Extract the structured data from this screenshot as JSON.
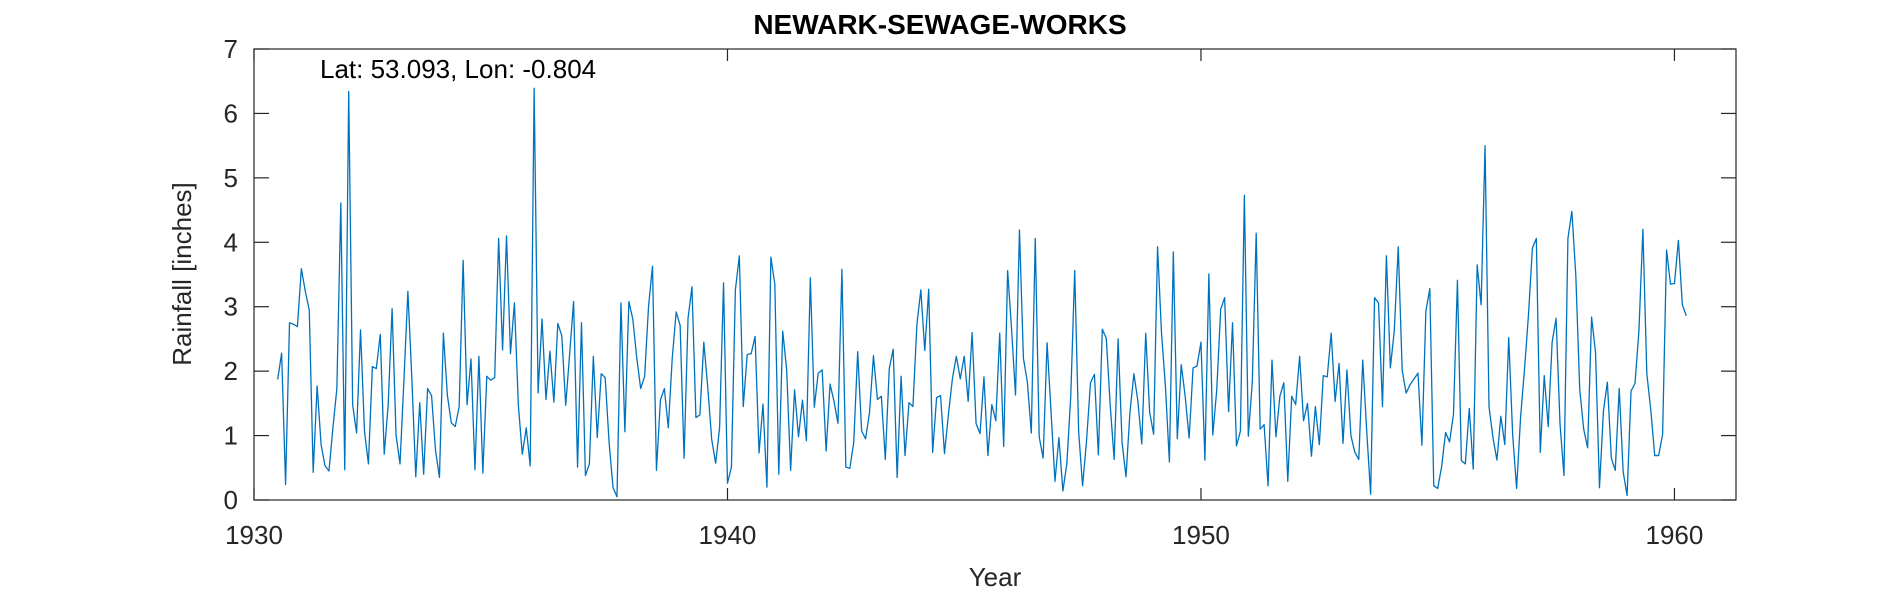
{
  "chart_data": {
    "type": "line",
    "title": "NEWARK-SEWAGE-WORKS",
    "xlabel": "Year",
    "ylabel": "Rainfall [inches]",
    "xlim": [
      1930,
      1961.3
    ],
    "ylim": [
      0,
      7
    ],
    "xticks": [
      1930,
      1940,
      1950,
      1960
    ],
    "yticks": [
      0,
      1,
      2,
      3,
      4,
      5,
      6,
      7
    ],
    "grid": false,
    "annotation": "Lat: 53.093, Lon: -0.804",
    "series": [
      {
        "color": "#0072BD",
        "start_year": 1930.5,
        "step": 0.0833333,
        "values": [
          1.87,
          2.28,
          0.24,
          2.75,
          2.73,
          2.69,
          3.59,
          3.24,
          2.95,
          0.43,
          1.77,
          0.86,
          0.53,
          0.45,
          1.12,
          1.73,
          4.61,
          0.47,
          6.34,
          1.48,
          1.04,
          2.64,
          1.07,
          0.56,
          2.07,
          2.04,
          2.57,
          0.71,
          1.47,
          2.97,
          1.01,
          0.56,
          1.86,
          3.24,
          1.89,
          0.36,
          1.51,
          0.4,
          1.73,
          1.62,
          0.77,
          0.35,
          2.59,
          1.63,
          1.2,
          1.14,
          1.45,
          3.72,
          1.48,
          2.19,
          0.47,
          2.23,
          0.42,
          1.92,
          1.86,
          1.9,
          4.06,
          2.33,
          4.1,
          2.27,
          3.06,
          1.47,
          0.71,
          1.12,
          0.53,
          6.39,
          1.66,
          2.81,
          1.56,
          2.31,
          1.52,
          2.74,
          2.55,
          1.47,
          2.27,
          3.08,
          0.51,
          2.75,
          0.38,
          0.56,
          2.23,
          0.97,
          1.96,
          1.9,
          0.89,
          0.19,
          0.05,
          3.06,
          1.06,
          3.08,
          2.81,
          2.21,
          1.73,
          1.92,
          3.01,
          3.63,
          0.46,
          1.55,
          1.73,
          1.12,
          2.2,
          2.92,
          2.71,
          0.65,
          2.82,
          3.31,
          1.28,
          1.32,
          2.45,
          1.75,
          0.94,
          0.57,
          1.12,
          3.37,
          0.26,
          0.51,
          3.26,
          3.79,
          1.45,
          2.26,
          2.27,
          2.54,
          0.73,
          1.49,
          0.2,
          3.77,
          3.35,
          0.4,
          2.62,
          2.02,
          0.46,
          1.71,
          0.98,
          1.55,
          0.92,
          3.45,
          1.44,
          1.97,
          2.02,
          0.76,
          1.8,
          1.53,
          1.19,
          3.58,
          0.51,
          0.49,
          0.89,
          2.3,
          1.07,
          0.95,
          1.36,
          2.24,
          1.56,
          1.61,
          0.63,
          2.04,
          2.34,
          0.35,
          1.92,
          0.69,
          1.51,
          1.45,
          2.72,
          3.26,
          2.32,
          3.27,
          0.74,
          1.59,
          1.62,
          0.72,
          1.33,
          1.88,
          2.23,
          1.88,
          2.23,
          1.53,
          2.6,
          1.19,
          1.03,
          1.91,
          0.69,
          1.48,
          1.23,
          2.59,
          0.83,
          3.56,
          2.65,
          1.63,
          4.19,
          2.2,
          1.83,
          1.04,
          4.06,
          0.98,
          0.65,
          2.44,
          1.37,
          0.29,
          0.97,
          0.14,
          0.56,
          1.61,
          3.56,
          1.06,
          0.22,
          0.92,
          1.82,
          1.95,
          0.7,
          2.65,
          2.51,
          1.47,
          0.63,
          2.5,
          0.9,
          0.36,
          1.36,
          1.96,
          1.54,
          0.87,
          2.59,
          1.36,
          1.02,
          3.93,
          2.59,
          1.76,
          0.59,
          3.85,
          0.95,
          2.1,
          1.61,
          0.96,
          2.05,
          2.08,
          2.45,
          0.62,
          3.51,
          1.01,
          1.71,
          2.96,
          3.14,
          1.37,
          2.75,
          0.84,
          1.07,
          4.73,
          0.99,
          1.82,
          4.14,
          1.1,
          1.17,
          0.22,
          2.17,
          0.98,
          1.61,
          1.82,
          0.29,
          1.61,
          1.48,
          2.23,
          1.23,
          1.5,
          0.68,
          1.45,
          0.86,
          1.93,
          1.91,
          2.59,
          1.53,
          2.12,
          0.88,
          2.02,
          1.0,
          0.74,
          0.63,
          2.17,
          1.08,
          0.09,
          3.14,
          3.06,
          1.45,
          3.79,
          2.05,
          2.63,
          3.93,
          2.01,
          1.66,
          1.79,
          1.88,
          1.97,
          0.85,
          2.93,
          3.28,
          0.22,
          0.18,
          0.52,
          1.05,
          0.9,
          1.33,
          3.41,
          0.61,
          0.56,
          1.42,
          0.48,
          3.65,
          3.03,
          5.5,
          1.45,
          0.97,
          0.62,
          1.3,
          0.86,
          2.52,
          1.01,
          0.18,
          1.28,
          2.03,
          2.87,
          3.91,
          4.06,
          0.74,
          1.93,
          1.14,
          2.45,
          2.82,
          1.18,
          0.38,
          4.06,
          4.48,
          3.49,
          1.71,
          1.1,
          0.81,
          2.84,
          2.29,
          0.19,
          1.38,
          1.83,
          0.65,
          0.46,
          1.73,
          0.44,
          0.07,
          1.69,
          1.81,
          2.63,
          4.2,
          1.96,
          1.4,
          0.69,
          0.69,
          1.02,
          3.88,
          3.35,
          3.36,
          4.03,
          3.03,
          2.86
        ]
      }
    ]
  }
}
